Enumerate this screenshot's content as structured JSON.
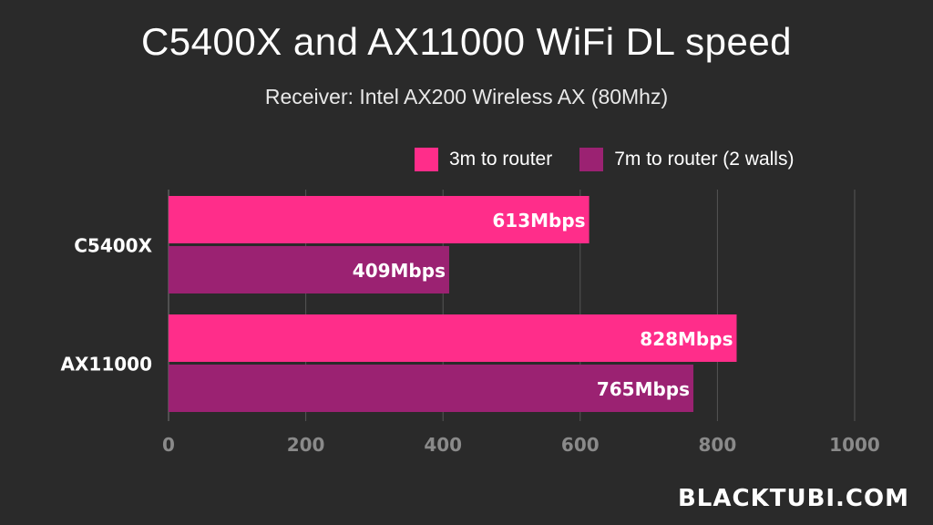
{
  "title": "C5400X and AX11000 WiFi DL speed",
  "subtitle": "Receiver: Intel AX200 Wireless AX (80Mhz)",
  "brand": "BLACKTUBI.COM",
  "chart_data": {
    "type": "bar",
    "orientation": "horizontal",
    "categories": [
      "C5400X",
      "AX11000"
    ],
    "series": [
      {
        "name": "3m to router",
        "color": "#ff2d8a",
        "values": [
          613,
          828
        ],
        "labels": [
          "613Mbps",
          "828Mbps"
        ]
      },
      {
        "name": "7m to router (2 walls)",
        "color": "#9b2272",
        "values": [
          409,
          765
        ],
        "labels": [
          "409Mbps",
          "765Mbps"
        ]
      }
    ],
    "xlim": [
      0,
      1000
    ],
    "xticks": [
      0,
      200,
      400,
      600,
      800,
      1000
    ],
    "grid": true,
    "legend_position": "top-right"
  }
}
